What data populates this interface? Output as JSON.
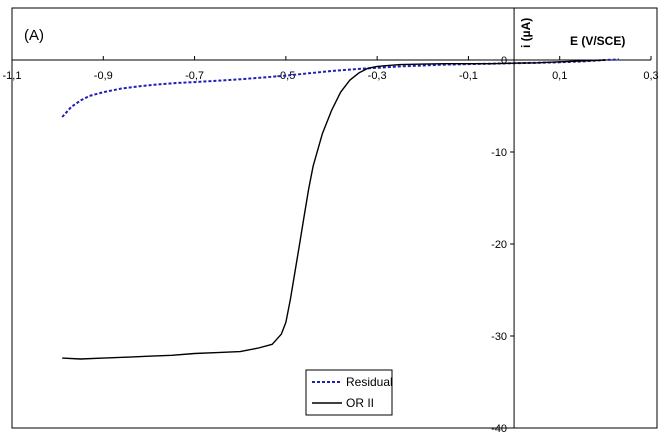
{
  "chart_data": {
    "type": "line",
    "panel_label": "(A)",
    "xlabel": "E (V/SCE)",
    "ylabel": "i (µA)",
    "xlim": [
      -1.1,
      0.3
    ],
    "ylim": [
      -40,
      0
    ],
    "x_ticks": [
      -1.1,
      -0.9,
      -0.7,
      -0.5,
      -0.3,
      -0.1,
      0.1,
      0.3
    ],
    "x_tick_labels": [
      "-1,1",
      "-0,9",
      "-0,7",
      "-0,5",
      "-0,3",
      "-0,1",
      "0,1",
      "0,3"
    ],
    "y_ticks": [
      0,
      -10,
      -20,
      -30,
      -40
    ],
    "y_tick_labels": [
      "0",
      "-10",
      "-20",
      "-30",
      "-40"
    ],
    "grid": false,
    "legend_position": "bottom-center",
    "series": [
      {
        "name": "Residual",
        "color": "#1f1fb4",
        "style": "dotted",
        "x": [
          -0.99,
          -0.97,
          -0.95,
          -0.93,
          -0.9,
          -0.86,
          -0.82,
          -0.78,
          -0.74,
          -0.7,
          -0.65,
          -0.6,
          -0.55,
          -0.5,
          -0.45,
          -0.4,
          -0.35,
          -0.3,
          -0.25,
          -0.2,
          -0.15,
          -0.1,
          -0.05,
          0.0,
          0.05,
          0.1,
          0.15,
          0.2,
          0.23
        ],
        "values": [
          -6.2,
          -5.1,
          -4.4,
          -3.9,
          -3.5,
          -3.1,
          -2.85,
          -2.65,
          -2.5,
          -2.4,
          -2.25,
          -2.1,
          -1.9,
          -1.7,
          -1.45,
          -1.2,
          -1.0,
          -0.85,
          -0.7,
          -0.6,
          -0.5,
          -0.45,
          -0.4,
          -0.35,
          -0.3,
          -0.25,
          -0.15,
          0.0,
          0.05
        ]
      },
      {
        "name": "OR II",
        "color": "#000000",
        "style": "solid",
        "x": [
          -0.99,
          -0.95,
          -0.9,
          -0.85,
          -0.8,
          -0.75,
          -0.7,
          -0.65,
          -0.6,
          -0.56,
          -0.53,
          -0.51,
          -0.5,
          -0.49,
          -0.48,
          -0.47,
          -0.46,
          -0.45,
          -0.44,
          -0.42,
          -0.4,
          -0.38,
          -0.36,
          -0.34,
          -0.32,
          -0.3,
          -0.25,
          -0.2,
          -0.15,
          -0.1,
          -0.05,
          0.0,
          0.05,
          0.1,
          0.15,
          0.2
        ],
        "values": [
          -32.4,
          -32.5,
          -32.4,
          -32.3,
          -32.2,
          -32.1,
          -31.9,
          -31.8,
          -31.7,
          -31.3,
          -30.9,
          -29.8,
          -28.5,
          -26.0,
          -23.0,
          -20.0,
          -17.0,
          -14.0,
          -11.5,
          -8.0,
          -5.5,
          -3.5,
          -2.2,
          -1.4,
          -0.9,
          -0.7,
          -0.5,
          -0.45,
          -0.4,
          -0.4,
          -0.4,
          -0.35,
          -0.3,
          -0.2,
          -0.1,
          0.0
        ]
      }
    ]
  }
}
